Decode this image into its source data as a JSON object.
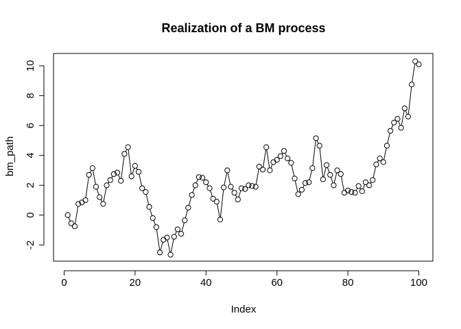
{
  "chart_data": {
    "type": "line",
    "title": "Realization of a BM process",
    "xlabel": "Index",
    "ylabel": "bm_path",
    "xlim": [
      0,
      100
    ],
    "ylim": [
      -2.6,
      10.3
    ],
    "xticks": [
      0,
      20,
      40,
      60,
      80,
      100
    ],
    "yticks": [
      -2,
      0,
      2,
      4,
      6,
      8,
      10
    ],
    "marker": "open-circle",
    "grid": false,
    "series": [
      {
        "x": [
          1,
          2,
          3,
          4,
          5,
          6,
          7,
          8,
          9,
          10,
          11,
          12,
          13,
          14,
          15,
          16,
          17,
          18,
          19,
          20,
          21,
          22,
          23,
          24,
          25,
          26,
          27,
          28,
          29,
          30,
          31,
          32,
          33,
          34,
          35,
          36,
          37,
          38,
          39,
          40,
          41,
          42,
          43,
          44,
          45,
          46,
          47,
          48,
          49,
          50,
          51,
          52,
          53,
          54,
          55,
          56,
          57,
          58,
          59,
          60,
          61,
          62,
          63,
          64,
          65,
          66,
          67,
          68,
          69,
          70,
          71,
          72,
          73,
          74,
          75,
          76,
          77,
          78,
          79,
          80,
          81,
          82,
          83,
          84,
          85,
          86,
          87,
          88,
          89,
          90,
          91,
          92,
          93,
          94,
          95,
          96,
          97,
          98,
          99,
          100
        ],
        "values": [
          0.0,
          -0.55,
          -0.75,
          0.75,
          0.85,
          1.0,
          2.7,
          3.15,
          1.9,
          1.2,
          0.75,
          2.0,
          2.35,
          2.75,
          2.85,
          2.3,
          4.1,
          4.55,
          2.6,
          3.3,
          2.9,
          1.8,
          1.55,
          0.55,
          -0.2,
          -0.8,
          -2.5,
          -1.65,
          -1.5,
          -2.65,
          -1.45,
          -0.95,
          -1.25,
          -0.35,
          0.5,
          1.35,
          2.0,
          2.55,
          2.5,
          2.2,
          1.8,
          1.1,
          0.9,
          -0.3,
          1.85,
          3.0,
          1.9,
          1.5,
          1.05,
          1.8,
          1.75,
          2.0,
          1.95,
          1.9,
          3.25,
          3.05,
          4.55,
          3.0,
          3.55,
          3.7,
          3.95,
          4.3,
          3.8,
          3.5,
          2.45,
          1.4,
          1.7,
          2.15,
          2.2,
          3.15,
          5.15,
          4.65,
          2.4,
          3.35,
          2.7,
          2.0,
          3.0,
          2.75,
          1.5,
          1.65,
          1.55,
          1.5,
          1.95,
          1.6,
          2.2,
          2.0,
          2.35,
          3.4,
          3.8,
          3.55,
          4.65,
          5.65,
          6.2,
          6.45,
          5.85,
          7.15,
          6.6,
          8.75,
          10.3,
          10.1
        ]
      }
    ]
  }
}
